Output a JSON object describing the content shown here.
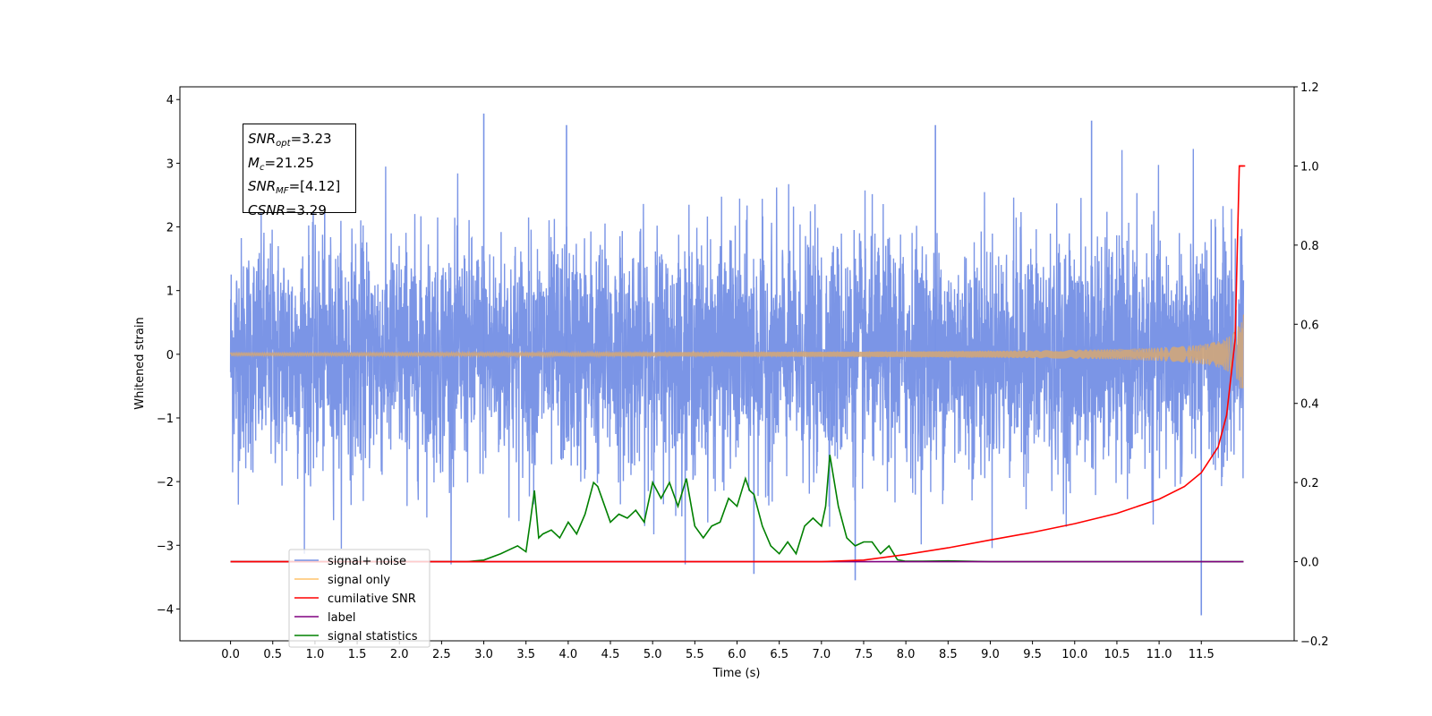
{
  "chart_data": {
    "type": "line",
    "title": "",
    "xlabel": "Time (s)",
    "ylabel": "Whitened strain",
    "xlim": [
      -0.6,
      12.6
    ],
    "ylim": [
      -4.5,
      4.2
    ],
    "y2lim": [
      -0.2,
      1.2
    ],
    "grid": false,
    "legend_position": "lower-left",
    "x_ticks": [
      "0.0",
      "0.5",
      "1.0",
      "1.5",
      "2.0",
      "2.5",
      "3.0",
      "3.5",
      "4.0",
      "4.5",
      "5.0",
      "5.5",
      "6.0",
      "6.5",
      "7.0",
      "7.5",
      "8.0",
      "8.5",
      "9.0",
      "9.5",
      "10.0",
      "10.5",
      "11.0",
      "11.5"
    ],
    "y_ticks": [
      "−4",
      "−3",
      "−2",
      "−1",
      "0",
      "1",
      "2",
      "3",
      "4"
    ],
    "y2_ticks": [
      "−0.2",
      "0.0",
      "0.2",
      "0.4",
      "0.6",
      "0.8",
      "1.0",
      "1.2"
    ],
    "y_tick_values": [
      -4,
      -3,
      -2,
      -1,
      0,
      1,
      2,
      3,
      4
    ],
    "y2_tick_values": [
      -0.2,
      0,
      0.2,
      0.4,
      0.6,
      0.8,
      1.0,
      1.2
    ],
    "annotation": {
      "snr_opt_label": "SNR",
      "snr_opt_sub": "opt",
      "snr_opt_value": "=3.23",
      "mc_label": "M",
      "mc_sub": "c",
      "mc_value": "=21.25",
      "snr_mf_label": "SNR",
      "snr_mf_sub": "MF",
      "snr_mf_value": "=[4.12]",
      "csnr_label": "CSNR",
      "csnr_value": "=3.29"
    },
    "series": [
      {
        "name": "signal+ noise",
        "color": "#7893e6",
        "axis": "left",
        "description_values": {
          "mean": 0,
          "std": 0.9,
          "min": -4.1,
          "max": 3.8,
          "x_start": 0.0,
          "x_end": 12.0
        }
      },
      {
        "name": "signal only",
        "color": "#f7b66b",
        "axis": "left",
        "chirp_peak_amplitude": 0.65,
        "x_end": 12.0
      },
      {
        "name": "cumilative SNR",
        "color": "#ff0000",
        "axis": "right",
        "x": [
          0.0,
          7.0,
          7.5,
          8.0,
          8.5,
          9.0,
          9.5,
          10.0,
          10.5,
          11.0,
          11.3,
          11.5,
          11.7,
          11.8,
          11.9,
          11.95,
          12.0
        ],
        "y": [
          0.0,
          0.0,
          0.004,
          0.018,
          0.035,
          0.055,
          0.074,
          0.096,
          0.122,
          0.158,
          0.19,
          0.225,
          0.29,
          0.37,
          0.56,
          1.0,
          1.0
        ]
      },
      {
        "name": "label",
        "color": "#800080",
        "axis": "right",
        "x": [
          0.0,
          12.0
        ],
        "y": [
          0.0,
          0.0
        ]
      },
      {
        "name": "signal statistics",
        "color": "#008000",
        "axis": "right",
        "x": [
          0.0,
          2.8,
          3.0,
          3.2,
          3.3,
          3.4,
          3.5,
          3.55,
          3.6,
          3.65,
          3.7,
          3.8,
          3.9,
          4.0,
          4.1,
          4.2,
          4.3,
          4.35,
          4.4,
          4.5,
          4.6,
          4.7,
          4.8,
          4.9,
          5.0,
          5.1,
          5.2,
          5.3,
          5.4,
          5.5,
          5.6,
          5.7,
          5.8,
          5.9,
          6.0,
          6.1,
          6.15,
          6.2,
          6.3,
          6.4,
          6.5,
          6.6,
          6.7,
          6.8,
          6.9,
          7.0,
          7.05,
          7.1,
          7.2,
          7.3,
          7.4,
          7.5,
          7.6,
          7.7,
          7.8,
          7.9,
          8.0,
          8.2,
          8.5,
          9.0,
          12.0
        ],
        "y": [
          0.0,
          0.0,
          0.004,
          0.02,
          0.03,
          0.04,
          0.025,
          0.1,
          0.18,
          0.06,
          0.07,
          0.08,
          0.06,
          0.1,
          0.07,
          0.12,
          0.2,
          0.19,
          0.16,
          0.1,
          0.12,
          0.11,
          0.13,
          0.1,
          0.2,
          0.16,
          0.2,
          0.14,
          0.21,
          0.09,
          0.06,
          0.09,
          0.1,
          0.16,
          0.14,
          0.21,
          0.18,
          0.17,
          0.09,
          0.04,
          0.02,
          0.05,
          0.02,
          0.09,
          0.11,
          0.09,
          0.14,
          0.27,
          0.14,
          0.06,
          0.04,
          0.05,
          0.05,
          0.02,
          0.04,
          0.005,
          0.001,
          0.001,
          0.002,
          0.0,
          0.0
        ]
      }
    ],
    "noise_spike_highlights": [
      {
        "x": 3.0,
        "y": 3.78
      },
      {
        "x": 3.98,
        "y": 3.6
      },
      {
        "x": 8.35,
        "y": 3.6
      },
      {
        "x": 10.2,
        "y": 3.67
      },
      {
        "x": 11.5,
        "y": -4.1
      },
      {
        "x": 6.2,
        "y": -3.45
      },
      {
        "x": 7.4,
        "y": -3.55
      }
    ]
  }
}
